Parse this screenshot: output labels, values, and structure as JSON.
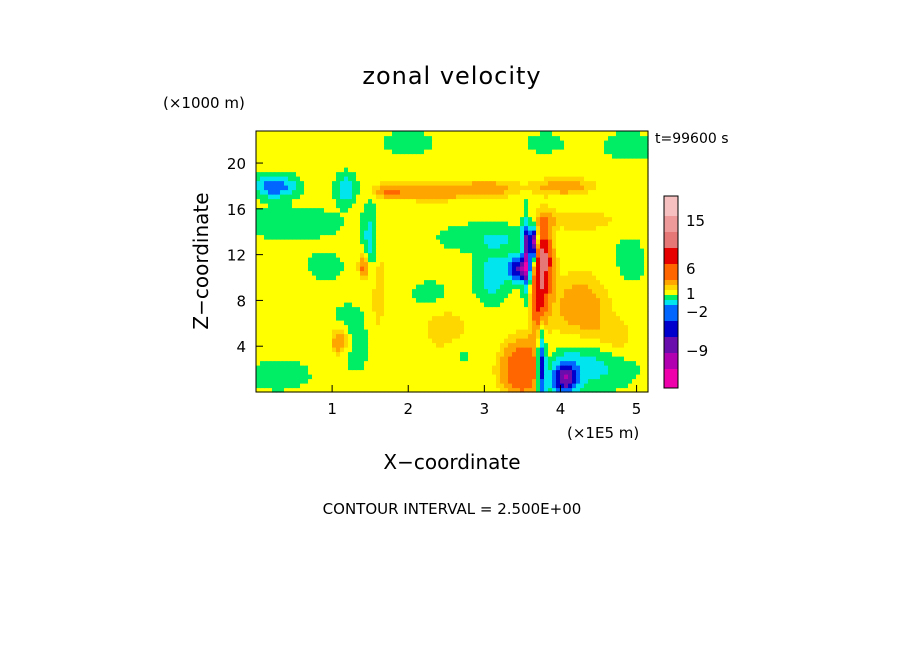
{
  "chart_data": {
    "type": "heatmap",
    "title": "zonal velocity",
    "xlabel": "X−coordinate",
    "ylabel": "Z−coordinate",
    "x_unit": "(×1E5 m)",
    "y_unit": "(×1000 m)",
    "time_label": "t=99600 s",
    "footer": "CONTOUR INTERVAL = 2.500E+00",
    "xlim": [
      0,
      5.15
    ],
    "ylim": [
      0,
      22.8
    ],
    "x_ticks": [
      "1",
      "2",
      "3",
      "4",
      "5"
    ],
    "y_ticks": [
      "4",
      "8",
      "12",
      "16",
      "20"
    ],
    "background_value": 0,
    "colorbar": {
      "levels": [
        {
          "color": "#f6c0c0"
        },
        {
          "color": "#ee9a9a"
        },
        {
          "color": "#e57777"
        },
        {
          "color": "#e60000"
        },
        {
          "color": "#ff6600"
        },
        {
          "color": "#ffa500"
        },
        {
          "color": "#ffd700"
        },
        {
          "color": "#ffff00"
        },
        {
          "color": "#00ee66"
        },
        {
          "color": "#00e5ee"
        },
        {
          "color": "#0066ff"
        },
        {
          "color": "#0000cc"
        },
        {
          "color": "#6a0dad"
        },
        {
          "color": "#b000b0"
        },
        {
          "color": "#ee00aa"
        }
      ],
      "tick_labels": [
        "15",
        "6",
        "1",
        "−2",
        "−9"
      ]
    },
    "features": [
      {
        "x": 0.25,
        "z": 18.0,
        "rx": 0.25,
        "rz": 0.9,
        "v": -6
      },
      {
        "x": 1.18,
        "z": 17.8,
        "rx": 0.12,
        "rz": 1.2,
        "v": -4
      },
      {
        "x": 2.3,
        "z": 17.5,
        "rx": 0.5,
        "rz": 0.8,
        "v": 3
      },
      {
        "x": 3.05,
        "z": 17.8,
        "rx": 0.4,
        "rz": 0.8,
        "v": 3
      },
      {
        "x": 1.75,
        "z": 17.6,
        "rx": 0.2,
        "rz": 0.7,
        "v": 3
      },
      {
        "x": 0.45,
        "z": 14.8,
        "rx": 0.6,
        "rz": 1.2,
        "v": -2
      },
      {
        "x": 1.5,
        "z": 13.0,
        "rx": 0.1,
        "rz": 3.2,
        "v": -3
      },
      {
        "x": 1.42,
        "z": 11.0,
        "rx": 0.07,
        "rz": 1.2,
        "v": 5
      },
      {
        "x": 1.6,
        "z": 9.5,
        "rx": 0.1,
        "rz": 4.5,
        "v": 2
      },
      {
        "x": 1.2,
        "z": 6.0,
        "rx": 0.25,
        "rz": 2.0,
        "v": -1
      },
      {
        "x": 1.3,
        "z": 3.5,
        "rx": 0.2,
        "rz": 2.0,
        "v": -1
      },
      {
        "x": 1.1,
        "z": 4.5,
        "rx": 0.12,
        "rz": 1.2,
        "v": 4
      },
      {
        "x": 0.3,
        "z": 1.5,
        "rx": 0.5,
        "rz": 1.6,
        "v": -1
      },
      {
        "x": 2.3,
        "z": 8.5,
        "rx": 0.3,
        "rz": 1.5,
        "v": -1
      },
      {
        "x": 2.7,
        "z": 3.5,
        "rx": 0.2,
        "rz": 1.3,
        "v": -1
      },
      {
        "x": 3.2,
        "z": 13.5,
        "rx": 0.7,
        "rz": 1.2,
        "v": -2
      },
      {
        "x": 3.1,
        "z": 10.2,
        "rx": 0.2,
        "rz": 2.2,
        "v": -3
      },
      {
        "x": 3.45,
        "z": 10.8,
        "rx": 0.15,
        "rz": 1.0,
        "v": -9
      },
      {
        "x": 3.55,
        "z": 12.0,
        "rx": 0.05,
        "rz": 3.0,
        "v": -9
      },
      {
        "x": 3.65,
        "z": 13.0,
        "rx": 0.05,
        "rz": 1.5,
        "v": -12
      },
      {
        "x": 3.78,
        "z": 11.8,
        "rx": 0.12,
        "rz": 3.0,
        "v": 9
      },
      {
        "x": 3.72,
        "z": 8.0,
        "rx": 0.1,
        "rz": 4.0,
        "v": 6
      },
      {
        "x": 3.5,
        "z": 2.0,
        "rx": 0.28,
        "rz": 2.5,
        "v": 6
      },
      {
        "x": 3.75,
        "z": 2.5,
        "rx": 0.06,
        "rz": 3.5,
        "v": -9
      },
      {
        "x": 4.05,
        "z": 1.2,
        "rx": 0.18,
        "rz": 1.4,
        "v": -9
      },
      {
        "x": 4.4,
        "z": 2.5,
        "rx": 0.5,
        "rz": 2.0,
        "v": -3
      },
      {
        "x": 4.25,
        "z": 7.5,
        "rx": 0.4,
        "rz": 3.0,
        "v": 3
      },
      {
        "x": 4.7,
        "z": 4.5,
        "rx": 0.3,
        "rz": 1.8,
        "v": 2
      },
      {
        "x": 4.05,
        "z": 18.0,
        "rx": 0.4,
        "rz": 0.8,
        "v": 3
      },
      {
        "x": 4.2,
        "z": 15.0,
        "rx": 0.6,
        "rz": 1.0,
        "v": 2
      },
      {
        "x": 4.9,
        "z": 11.5,
        "rx": 0.25,
        "rz": 2.5,
        "v": -1
      },
      {
        "x": 4.9,
        "z": 21.5,
        "rx": 0.4,
        "rz": 1.5,
        "v": -1
      },
      {
        "x": 3.8,
        "z": 21.8,
        "rx": 0.3,
        "rz": 1.0,
        "v": -1
      },
      {
        "x": 2.0,
        "z": 21.8,
        "rx": 0.4,
        "rz": 1.2,
        "v": -1
      },
      {
        "x": 0.9,
        "z": 11.0,
        "rx": 0.3,
        "rz": 1.5,
        "v": -1
      },
      {
        "x": 0.4,
        "z": 9.0,
        "rx": 0.3,
        "rz": 1.5,
        "v": 1
      },
      {
        "x": 2.5,
        "z": 5.5,
        "rx": 0.3,
        "rz": 2.0,
        "v": 2
      }
    ]
  }
}
